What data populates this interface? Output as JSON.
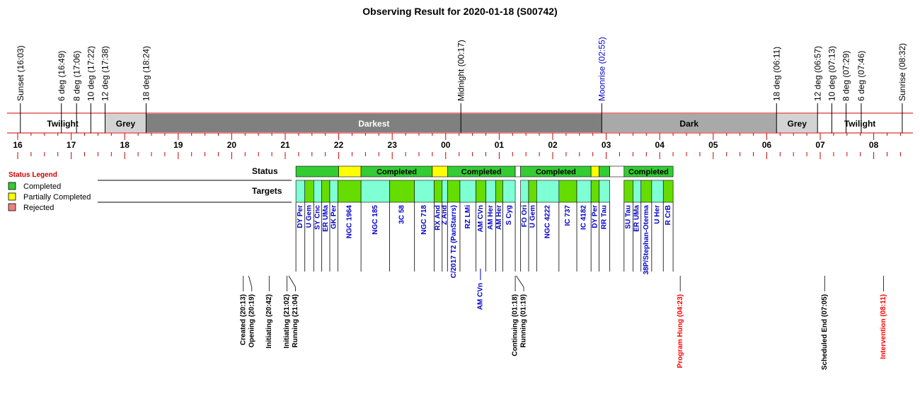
{
  "chart_data": {
    "type": "timeline",
    "title": "Observing Result for 2020-01-18 (S00742)",
    "time_axis": {
      "start": "16:00",
      "end": "08:40",
      "ticks": [
        "16",
        "17",
        "18",
        "19",
        "20",
        "21",
        "22",
        "23",
        "00",
        "01",
        "02",
        "03",
        "04",
        "05",
        "06",
        "07",
        "08"
      ]
    },
    "sky_events": [
      {
        "label": "Sunset (16:03)",
        "time": "16:03",
        "color": "#000000"
      },
      {
        "label": "6 deg (16:49)",
        "time": "16:49",
        "color": "#000000"
      },
      {
        "label": "8 deg (17:06)",
        "time": "17:06",
        "color": "#000000"
      },
      {
        "label": "10 deg (17:22)",
        "time": "17:22",
        "color": "#000000"
      },
      {
        "label": "12 deg (17:38)",
        "time": "17:38",
        "color": "#000000"
      },
      {
        "label": "18 deg (18:24)",
        "time": "18:24",
        "color": "#000000"
      },
      {
        "label": "Midnight (00:17)",
        "time": "00:17",
        "color": "#000000"
      },
      {
        "label": "Moonrise (02:55)",
        "time": "02:55",
        "color": "#0000cc"
      },
      {
        "label": "18 deg (06:11)",
        "time": "06:11",
        "color": "#000000"
      },
      {
        "label": "12 deg (06:57)",
        "time": "06:57",
        "color": "#000000"
      },
      {
        "label": "10 deg (07:13)",
        "time": "07:13",
        "color": "#000000"
      },
      {
        "label": "8 deg (07:29)",
        "time": "07:29",
        "color": "#000000"
      },
      {
        "label": "6 deg (07:46)",
        "time": "07:46",
        "color": "#000000"
      },
      {
        "label": "Sunrise (08:32)",
        "time": "08:32",
        "color": "#000000"
      }
    ],
    "sky_bands": [
      {
        "label": "Twilight",
        "start": "16:03",
        "end": "17:38",
        "fill": "#ffffff",
        "text_color": "#000000"
      },
      {
        "label": "Grey",
        "start": "17:38",
        "end": "18:24",
        "fill": "#d3d3d3",
        "text_color": "#000000"
      },
      {
        "label": "Darkest",
        "start": "18:24",
        "end": "02:55",
        "fill": "#808080",
        "text_color": "#ffffff"
      },
      {
        "label": "Dark",
        "start": "02:55",
        "end": "06:11",
        "fill": "#a9a9a9",
        "text_color": "#000000"
      },
      {
        "label": "Grey",
        "start": "06:11",
        "end": "06:57",
        "fill": "#d3d3d3",
        "text_color": "#000000"
      },
      {
        "label": "Twilight",
        "start": "06:57",
        "end": "08:32",
        "fill": "#ffffff",
        "text_color": "#000000"
      }
    ],
    "legend": {
      "title": "Status Legend",
      "items": [
        {
          "label": "Completed",
          "color": "#33cc33"
        },
        {
          "label": "Partially Completed",
          "color": "#ffff00"
        },
        {
          "label": "Rejected",
          "color": "#f08080"
        }
      ]
    },
    "row_labels": {
      "status": "Status",
      "targets": "Targets"
    },
    "status_segments": [
      {
        "start": "21:12",
        "end": "22:00",
        "status": "completed",
        "label": ""
      },
      {
        "start": "22:00",
        "end": "22:25",
        "status": "partial",
        "label": ""
      },
      {
        "start": "22:25",
        "end": "23:45",
        "status": "completed",
        "label": "Completed"
      },
      {
        "start": "23:45",
        "end": "00:02",
        "status": "partial",
        "label": ""
      },
      {
        "start": "00:02",
        "end": "01:18",
        "status": "completed",
        "label": "Completed"
      },
      {
        "start": "01:18",
        "end": "01:24",
        "status": "gap",
        "label": ""
      },
      {
        "start": "01:24",
        "end": "02:43",
        "status": "completed",
        "label": "Completed"
      },
      {
        "start": "02:43",
        "end": "02:52",
        "status": "partial",
        "label": ""
      },
      {
        "start": "02:52",
        "end": "03:04",
        "status": "completed",
        "label": ""
      },
      {
        "start": "03:04",
        "end": "03:20",
        "status": "gap",
        "label": ""
      },
      {
        "start": "03:20",
        "end": "04:15",
        "status": "completed",
        "label": "Completed"
      }
    ],
    "targets": [
      {
        "name": "DY Per",
        "start": "21:12",
        "end": "21:22",
        "fill": "#7fffd4"
      },
      {
        "name": "U Gem",
        "start": "21:22",
        "end": "21:32",
        "fill": "#66dd00"
      },
      {
        "name": "SY Cnc",
        "start": "21:32",
        "end": "21:41",
        "fill": "#7fffd4"
      },
      {
        "name": "ER UMa",
        "start": "21:41",
        "end": "21:50",
        "fill": "#66dd00"
      },
      {
        "name": "GK Per",
        "start": "21:50",
        "end": "21:59",
        "fill": "#7fffd4"
      },
      {
        "name": "NGC 1964",
        "start": "21:59",
        "end": "22:25",
        "fill": "#66dd00"
      },
      {
        "name": "NGC 185",
        "start": "22:25",
        "end": "22:57",
        "fill": "#7fffd4"
      },
      {
        "name": "3C 58",
        "start": "22:57",
        "end": "23:25",
        "fill": "#66dd00"
      },
      {
        "name": "NGC 718",
        "start": "23:25",
        "end": "23:47",
        "fill": "#7fffd4"
      },
      {
        "name": "RX And",
        "start": "23:47",
        "end": "23:56",
        "fill": "#66dd00"
      },
      {
        "name": "Z And",
        "start": "23:56",
        "end": "00:02",
        "fill": "#7fffd4"
      },
      {
        "name": "C/2017 T2 (PanStarrs)",
        "start": "00:02",
        "end": "00:16",
        "fill": "#66dd00"
      },
      {
        "name": "RZ LMi",
        "start": "00:16",
        "end": "00:34",
        "fill": "#7fffd4"
      },
      {
        "name": "AM CVn",
        "start": "00:34",
        "end": "00:45",
        "fill": "#66dd00"
      },
      {
        "name": "AM Her",
        "start": "00:45",
        "end": "00:56",
        "fill": "#7fffd4"
      },
      {
        "name": "AM Her",
        "start": "00:56",
        "end": "01:04",
        "fill": "#66dd00"
      },
      {
        "name": "S Cyg",
        "start": "01:04",
        "end": "01:18",
        "fill": "#7fffd4"
      },
      {
        "name": "FO Ori",
        "start": "01:24",
        "end": "01:33",
        "fill": "#7fffd4"
      },
      {
        "name": "U Gem",
        "start": "01:33",
        "end": "01:42",
        "fill": "#66dd00"
      },
      {
        "name": "NGC 4222",
        "start": "01:42",
        "end": "02:07",
        "fill": "#7fffd4"
      },
      {
        "name": "IC 737",
        "start": "02:07",
        "end": "02:27",
        "fill": "#66dd00"
      },
      {
        "name": "IC 4182",
        "start": "02:27",
        "end": "02:43",
        "fill": "#7fffd4"
      },
      {
        "name": "DY Per",
        "start": "02:43",
        "end": "02:52",
        "fill": "#66dd00"
      },
      {
        "name": "RR Tau",
        "start": "02:52",
        "end": "03:04",
        "fill": "#7fffd4"
      },
      {
        "name": "SU Tau",
        "start": "03:20",
        "end": "03:30",
        "fill": "#66dd00"
      },
      {
        "name": "ER UMa",
        "start": "03:30",
        "end": "03:39",
        "fill": "#7fffd4"
      },
      {
        "name": "38P/Stephan-Oterma",
        "start": "03:39",
        "end": "03:51",
        "fill": "#66dd00"
      },
      {
        "name": "U Her",
        "start": "03:51",
        "end": "04:04",
        "fill": "#7fffd4"
      },
      {
        "name": "R CrB",
        "start": "04:04",
        "end": "04:15",
        "fill": "#66dd00"
      }
    ],
    "target_extras": [
      {
        "name": "AM CVn",
        "time": "00:39"
      }
    ],
    "program_events": [
      {
        "label": "Created (20:13)",
        "time": "20:13",
        "color": "#000000"
      },
      {
        "label": "Opening (20:19)",
        "time": "20:19",
        "color": "#000000"
      },
      {
        "label": "Initiating (20:42)",
        "time": "20:42",
        "color": "#000000"
      },
      {
        "label": "Initiating (21:02)",
        "time": "21:02",
        "color": "#000000"
      },
      {
        "label": "Running (21:04)",
        "time": "21:04",
        "color": "#000000"
      },
      {
        "label": "Continuing (01:18)",
        "time": "01:18",
        "color": "#000000"
      },
      {
        "label": "Running (01:19)",
        "time": "01:19",
        "color": "#000000"
      },
      {
        "label": "Program Hung (04:23)",
        "time": "04:23",
        "color": "#ff0000"
      },
      {
        "label": "Scheduled End (07:05)",
        "time": "07:05",
        "color": "#000000"
      },
      {
        "label": "Intervention (08:11)",
        "time": "08:11",
        "color": "#ff0000"
      }
    ],
    "colors": {
      "completed": "#33cc33",
      "partial": "#ffff00",
      "rejected": "#f08080",
      "axis": "#cc0000",
      "target_text": "#0000cc"
    }
  }
}
